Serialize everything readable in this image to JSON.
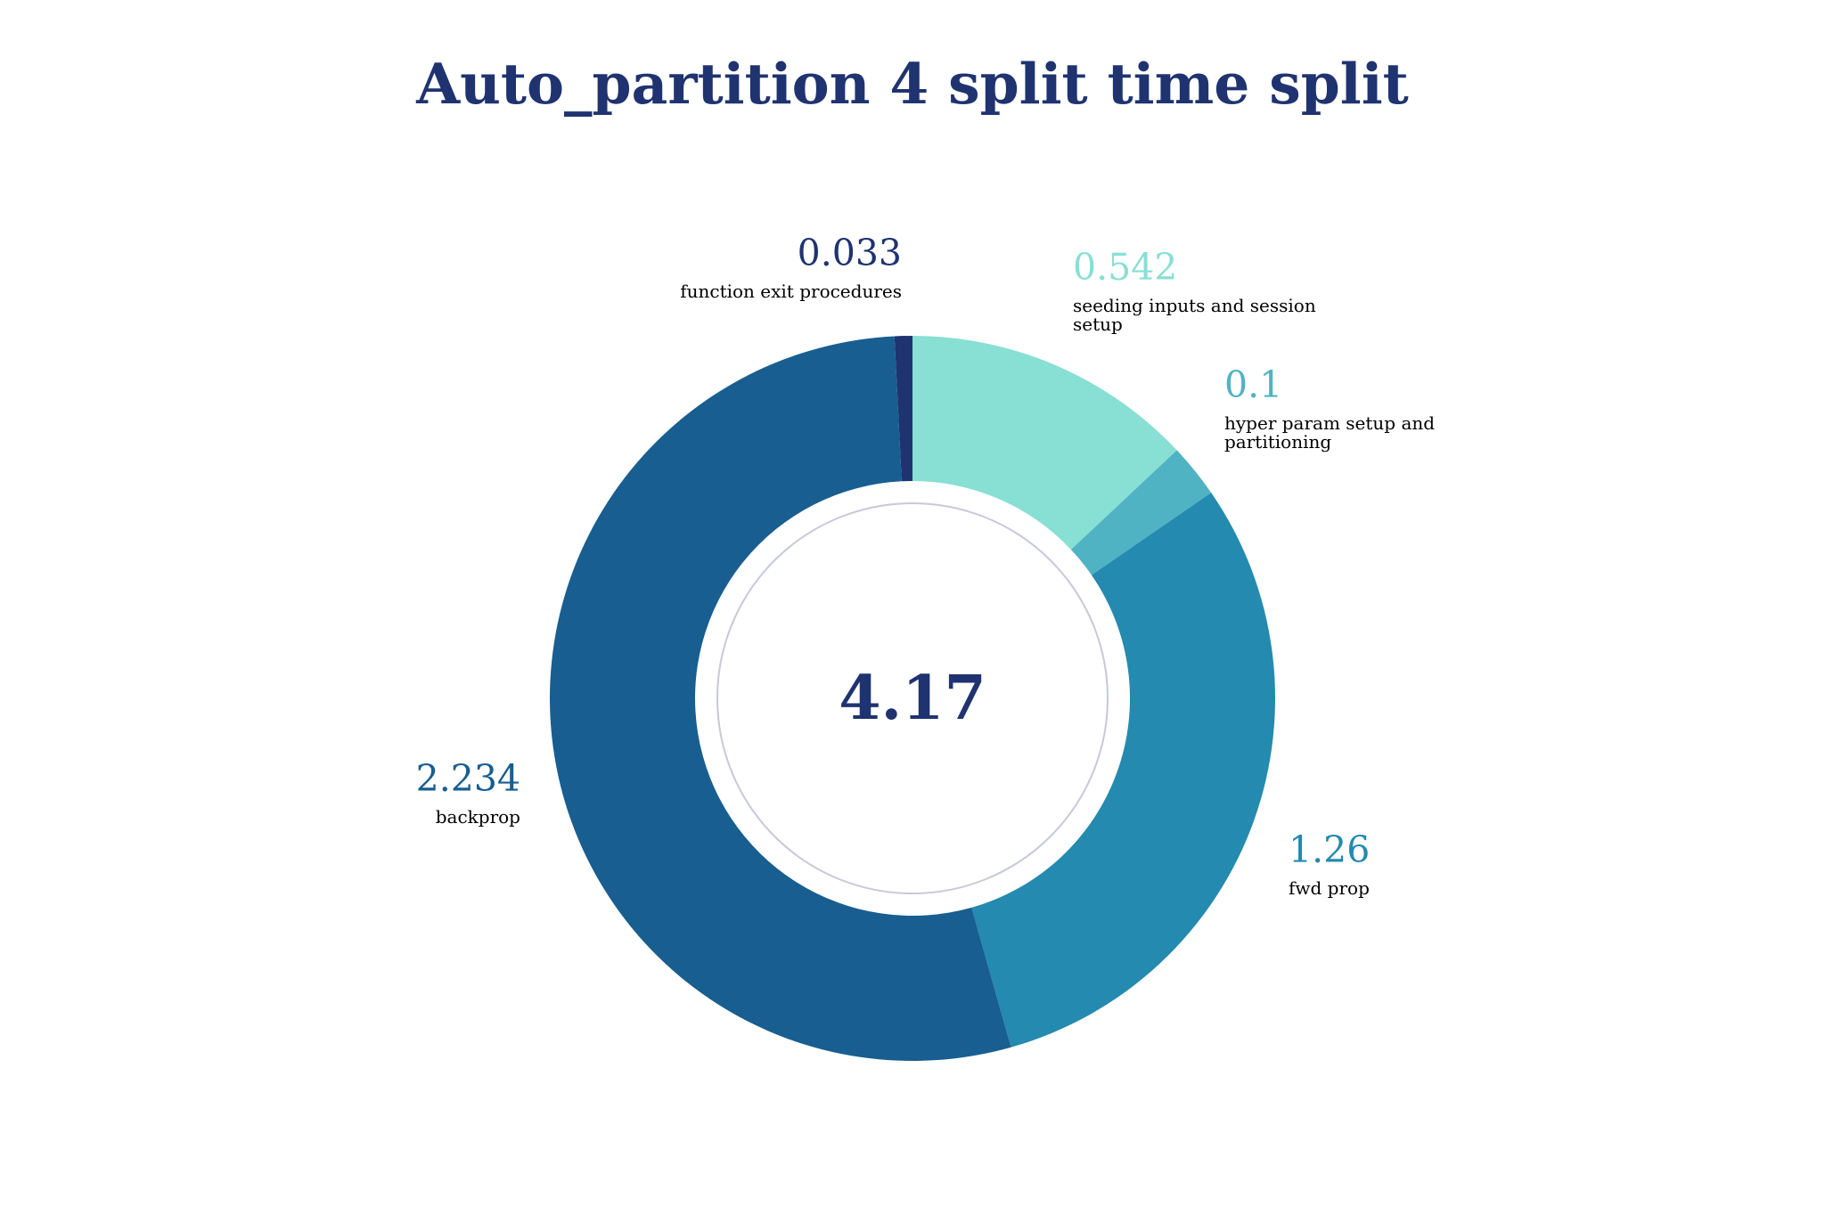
{
  "chart_data": {
    "type": "pie",
    "donut": true,
    "title": "Auto_partition 4 split time split",
    "center_label": "4.17",
    "slices": [
      {
        "label": "function exit procedures",
        "value_text": "0.033",
        "value": 0.033,
        "color": "#1f3370"
      },
      {
        "label": "seeding inputs and session setup",
        "value_text": "0.542",
        "value": 0.542,
        "color": "#88dfd4"
      },
      {
        "label": "hyper param setup and partitioning",
        "value_text": "0.1",
        "value": 0.1,
        "color": "#4fb3c3"
      },
      {
        "label": "fwd prop",
        "value_text": "1.26",
        "value": 1.26,
        "color": "#248aaf"
      },
      {
        "label": "backprop",
        "value_text": "2.234",
        "value": 2.234,
        "color": "#185e90"
      }
    ],
    "legend": "none"
  },
  "colors": {
    "title": "#1f3370",
    "center_text": "#1f3370",
    "inner_ring": "#c8c8dc",
    "background": "#ffffff"
  }
}
